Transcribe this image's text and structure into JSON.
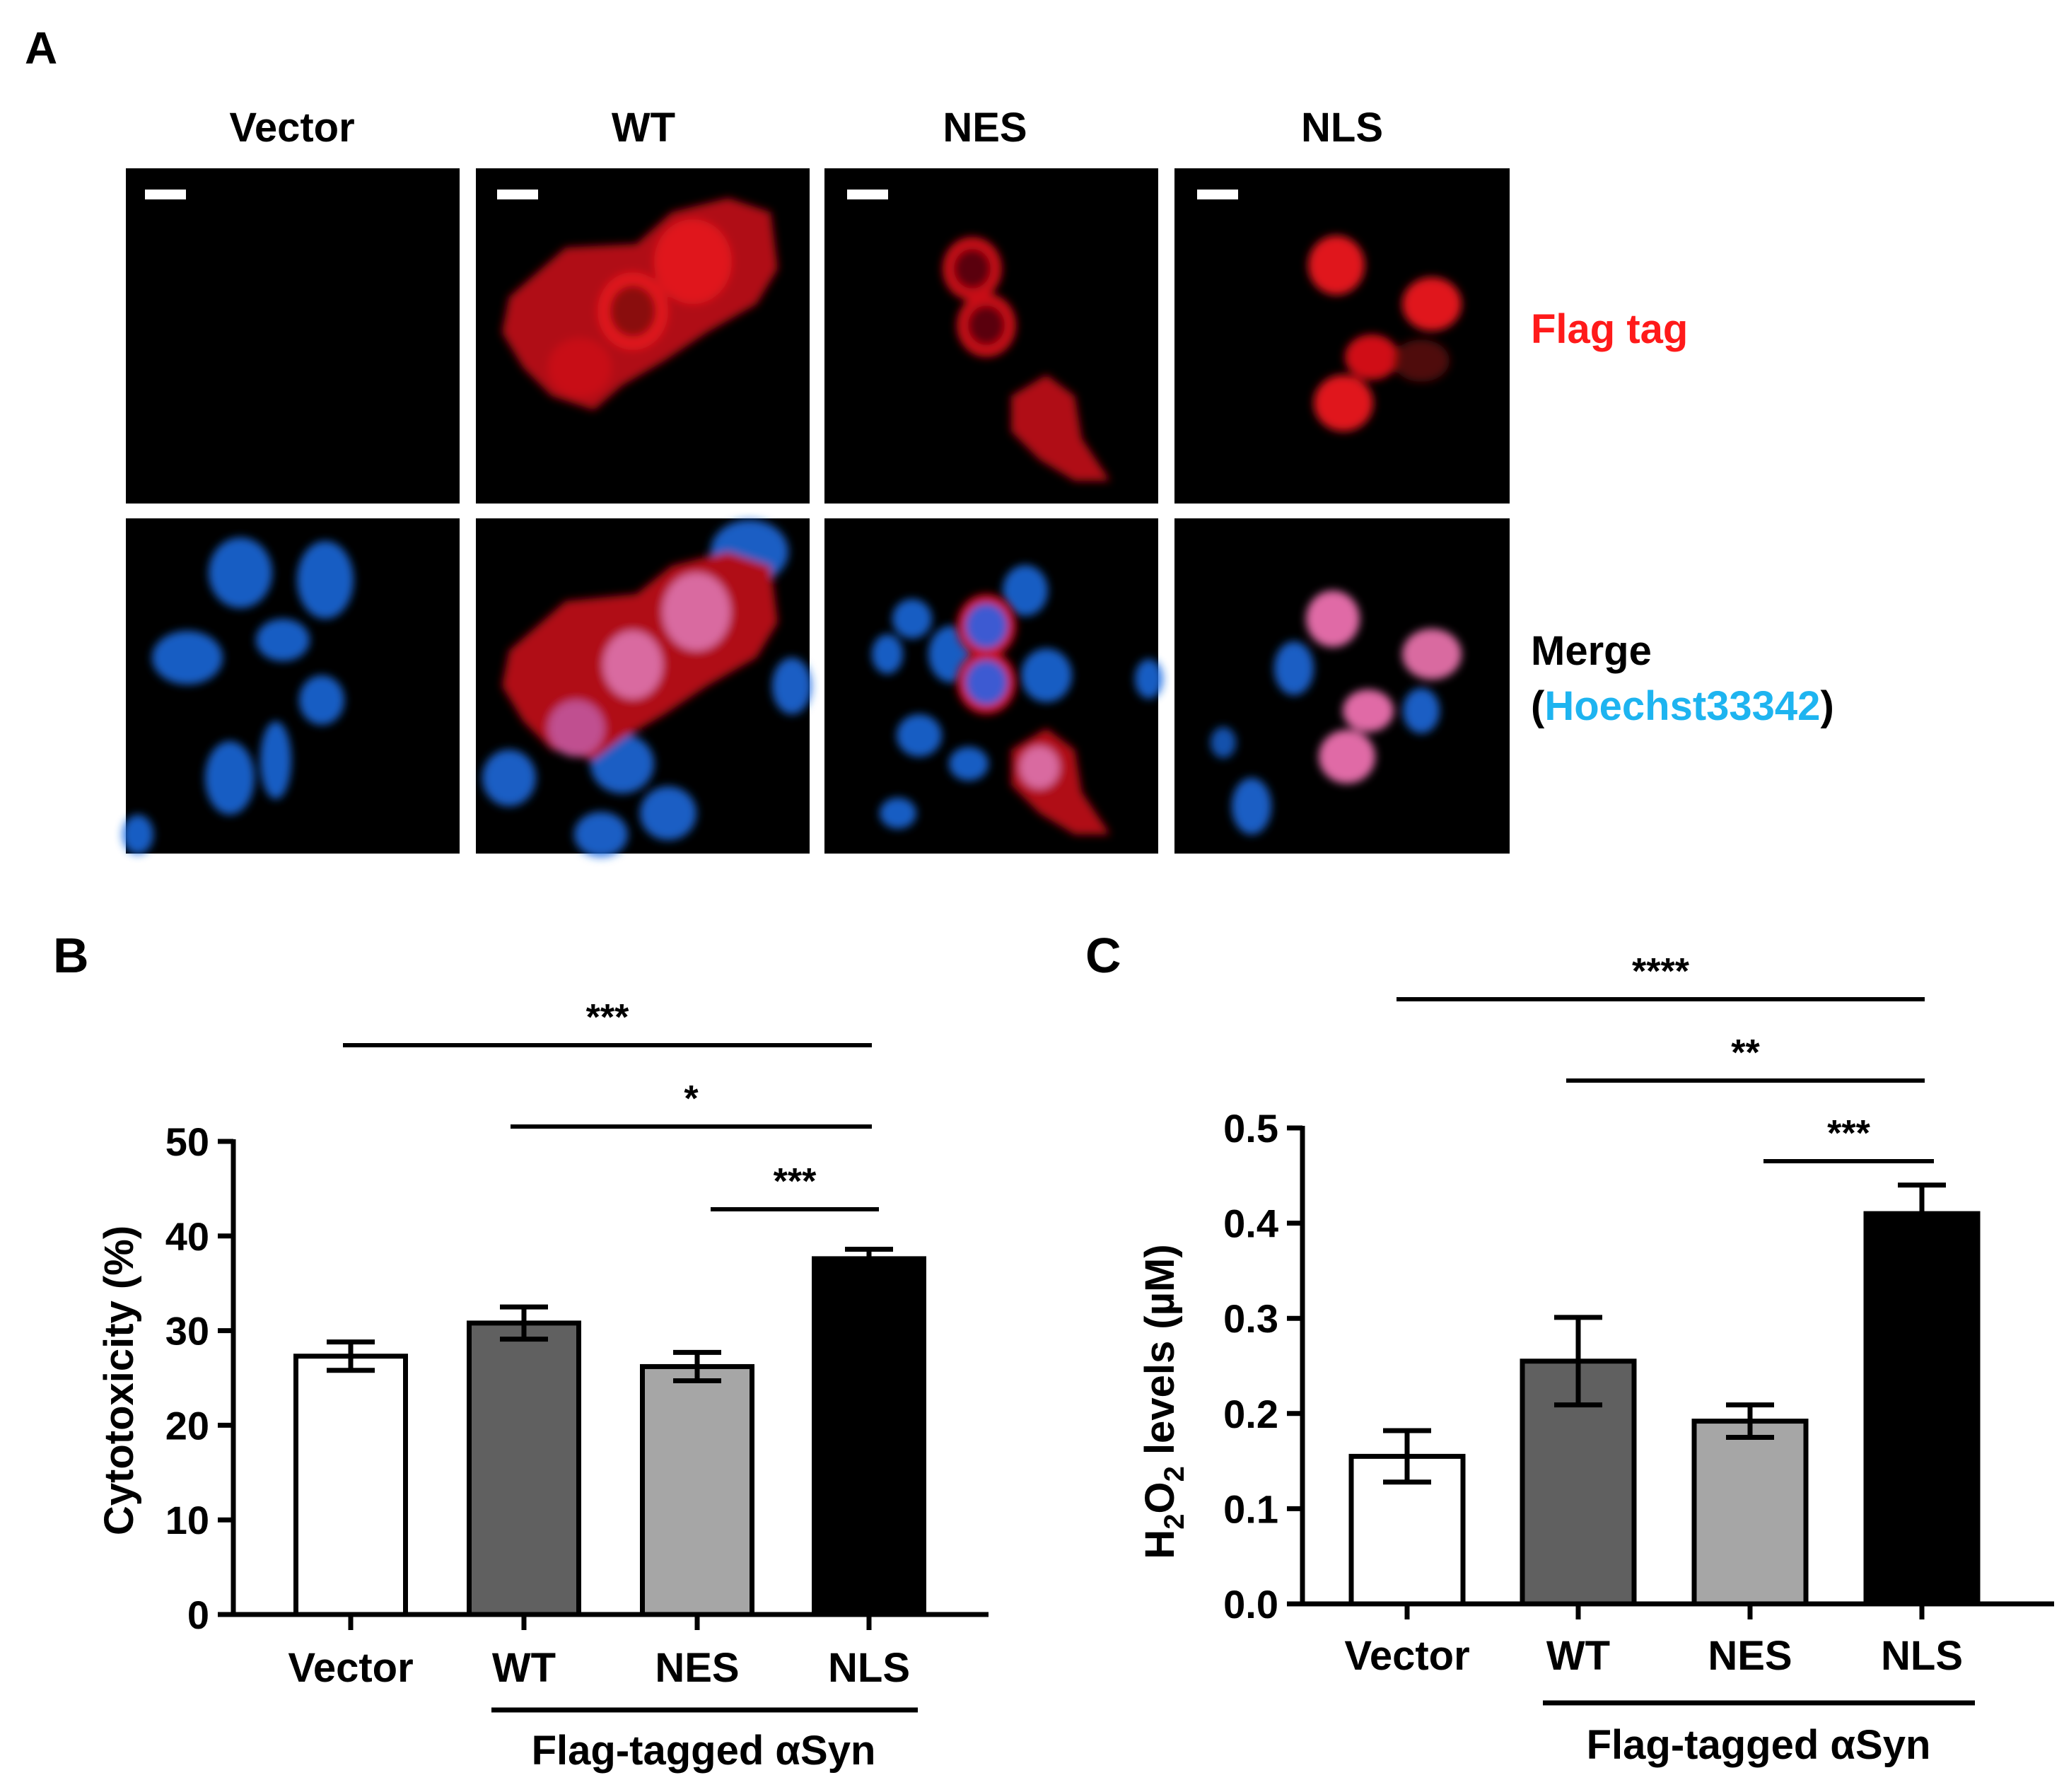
{
  "panel_a": {
    "letter": "A",
    "columns": [
      "Vector",
      "WT",
      "NES",
      "NLS"
    ],
    "row_labels": {
      "flag": "Flag tag",
      "merge": "Merge",
      "merge_open": "(",
      "merge_stain": "Hoechst33342",
      "merge_close": ")"
    },
    "colors": {
      "flag": "#ff1a1a",
      "stain": "#1eb4f0",
      "cell_red": "#e0141e",
      "nucleus_blue": "#1e6ee6"
    }
  },
  "panel_b": {
    "letter": "B",
    "group_label": "Flag-tagged αSyn",
    "significance": [
      {
        "from": 0,
        "to": 3,
        "label": "***"
      },
      {
        "from": 1,
        "to": 3,
        "label": "*"
      },
      {
        "from": 2,
        "to": 3,
        "label": "***"
      }
    ]
  },
  "panel_c": {
    "letter": "C",
    "group_label": "Flag-tagged αSyn",
    "significance": [
      {
        "from": 0,
        "to": 3,
        "label": "****"
      },
      {
        "from": 1,
        "to": 3,
        "label": "**"
      },
      {
        "from": 2,
        "to": 3,
        "label": "***"
      }
    ]
  },
  "chart_data": [
    {
      "type": "bar",
      "categories": [
        "Vector",
        "WT",
        "NES",
        "NLS"
      ],
      "values": [
        27.3,
        30.8,
        26.2,
        37.6
      ],
      "errors": [
        1.5,
        1.7,
        1.5,
        1.0
      ],
      "ylabel": "Cytotoxicity (%)",
      "ylim": [
        0,
        50
      ],
      "yticks": [
        "0",
        "10",
        "20",
        "30",
        "40",
        "50"
      ],
      "bar_colors": [
        "#ffffff",
        "#606060",
        "#a6a6a6",
        "#000000"
      ]
    },
    {
      "type": "bar",
      "categories": [
        "Vector",
        "WT",
        "NES",
        "NLS"
      ],
      "values": [
        0.155,
        0.255,
        0.192,
        0.41
      ],
      "errors": [
        0.027,
        0.046,
        0.017,
        0.03
      ],
      "ylabel": "H2O2 levels (µM)",
      "ylim": [
        0,
        0.5
      ],
      "yticks": [
        "0.0",
        "0.1",
        "0.2",
        "0.3",
        "0.4",
        "0.5"
      ],
      "bar_colors": [
        "#ffffff",
        "#606060",
        "#a6a6a6",
        "#000000"
      ]
    }
  ]
}
